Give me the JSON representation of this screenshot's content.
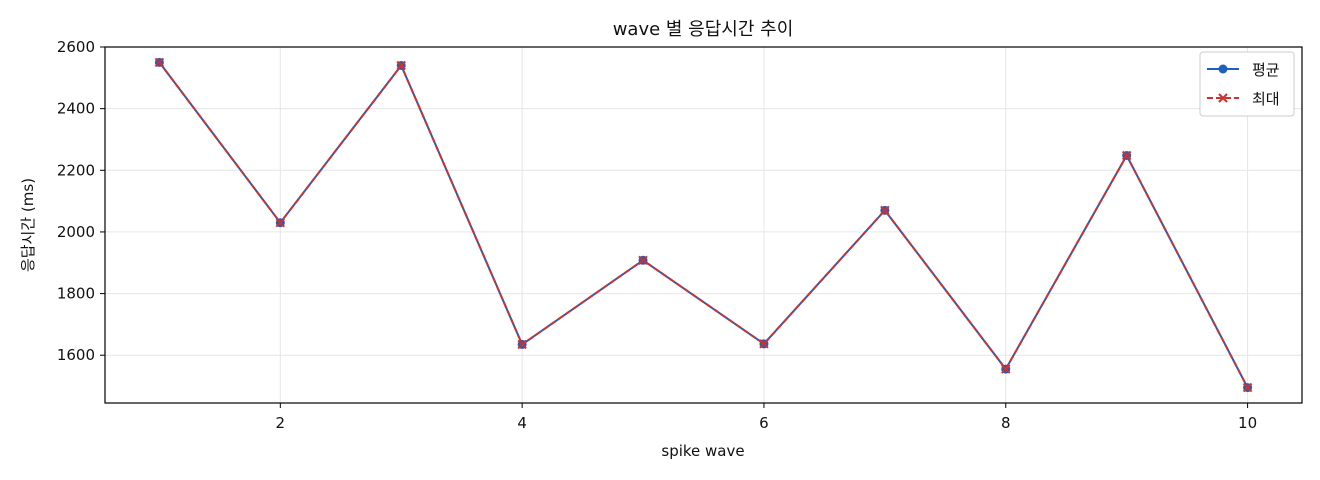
{
  "chart_data": {
    "type": "line",
    "title": "wave 별 응답시간 추이",
    "xlabel": "spike wave",
    "ylabel": "응답시간 (ms)",
    "x": [
      1,
      2,
      3,
      4,
      5,
      6,
      7,
      8,
      9,
      10
    ],
    "xlim": [
      0.55,
      10.45
    ],
    "ylim": [
      1445,
      2600
    ],
    "xticks": [
      2,
      4,
      6,
      8,
      10
    ],
    "yticks": [
      1600,
      1800,
      2000,
      2200,
      2400,
      2600
    ],
    "grid": true,
    "legend_position": "top-right",
    "series": [
      {
        "name": "평균",
        "color": "#1f5fbf",
        "marker": "circle",
        "line_style": "solid",
        "values": [
          2550,
          2030,
          2540,
          1635,
          1908,
          1637,
          2070,
          1555,
          2248,
          1495
        ]
      },
      {
        "name": "최대",
        "color": "#d0312d",
        "marker": "x",
        "line_style": "dashed",
        "values": [
          2550,
          2030,
          2540,
          1635,
          1908,
          1637,
          2070,
          1555,
          2248,
          1495
        ]
      }
    ]
  }
}
